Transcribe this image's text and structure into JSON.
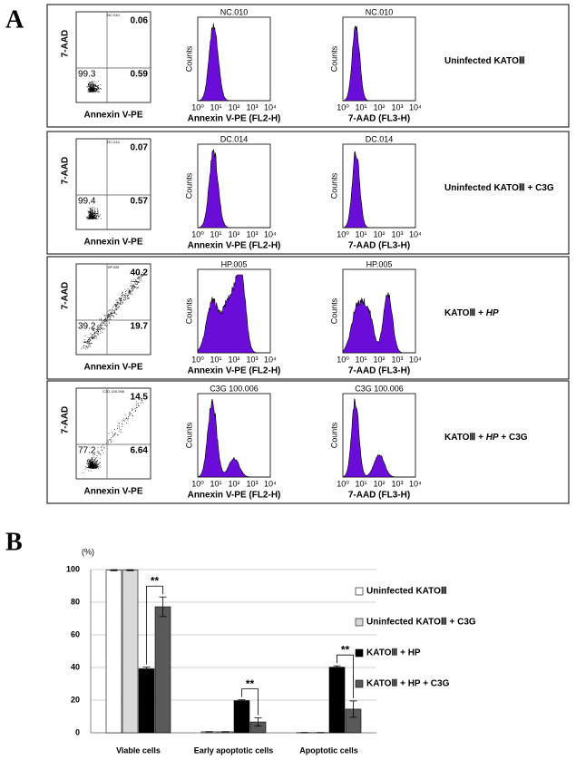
{
  "panel_a": {
    "label": "A",
    "dot_ylabel": "7-AAD",
    "dot_xlabel": "Annexin V-PE",
    "hist_ylabel": "Counts",
    "hist_xlabels": [
      "Annexin V-PE (FL2-H)",
      "7-AAD (FL3-H)"
    ],
    "hist_xticks": [
      "10⁰",
      "10¹",
      "10²",
      "10³",
      "10⁴"
    ],
    "rows": [
      {
        "sample": "NC.010",
        "upper_right": 0.06,
        "lower_left": 99.3,
        "lower_right": 0.59,
        "condition": [
          "Uninfected KATOⅢ"
        ]
      },
      {
        "sample": "DC.014",
        "upper_right": 0.07,
        "lower_left": 99.4,
        "lower_right": 0.57,
        "condition": [
          "Uninfected KATOⅢ + C3G"
        ]
      },
      {
        "sample": "HP.005",
        "upper_right": 40.2,
        "lower_left": 39.2,
        "lower_right": 19.7,
        "condition": [
          "KATOⅢ + ",
          "HP"
        ]
      },
      {
        "sample": "C3G 100.006",
        "upper_right": 14.5,
        "lower_left": 77.2,
        "lower_right": 6.64,
        "condition": [
          "KATOⅢ + ",
          "HP",
          " + C3G"
        ]
      }
    ]
  },
  "chart_data": {
    "type": "bar",
    "label": "B",
    "y_unit": "(%)",
    "categories": [
      "Viable cells",
      "Early apoptotic cells",
      "Apoptotic cells"
    ],
    "series": [
      {
        "name": "Uninfected KATOⅢ",
        "color": "#ffffff",
        "values": [
          99.6,
          0.6,
          0.1
        ],
        "errors": [
          0.3,
          0.1,
          0.1
        ]
      },
      {
        "name": "Uninfected KATOⅢ + C3G",
        "color": "#d9d9d9",
        "values": [
          99.6,
          0.6,
          0.1
        ],
        "errors": [
          0.3,
          0.1,
          0.1
        ]
      },
      {
        "name": "KATOⅢ + HP",
        "color": "#000000",
        "values": [
          39.2,
          19.7,
          40.2
        ],
        "errors": [
          1,
          0.5,
          0.8
        ]
      },
      {
        "name": "KATOⅢ + HP + C3G",
        "color": "#595959",
        "values": [
          77.2,
          6.64,
          14.5
        ],
        "errors": [
          6,
          2.5,
          5
        ]
      }
    ],
    "significance_labels": [
      "**",
      "**",
      "**"
    ],
    "ylim": [
      0,
      100
    ],
    "yticks": [
      0,
      20,
      40,
      60,
      80,
      100
    ],
    "grid": true
  }
}
